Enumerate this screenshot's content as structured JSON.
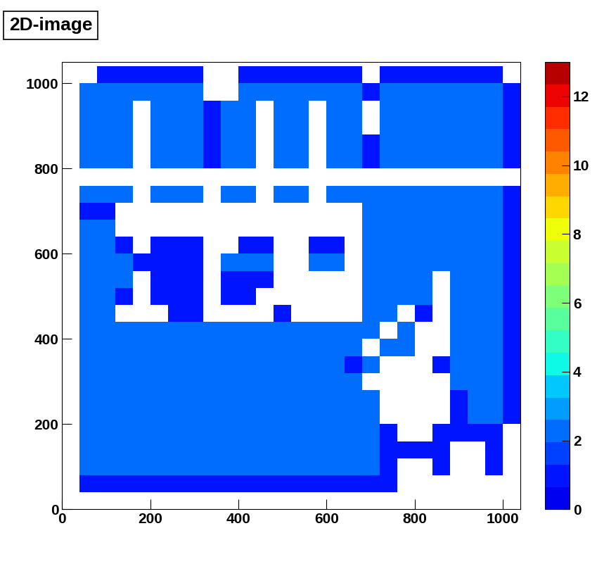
{
  "chart_data": {
    "type": "heatmap",
    "title": "2D-image",
    "x_edges": [
      0,
      40,
      80,
      120,
      160,
      200,
      240,
      280,
      320,
      360,
      400,
      440,
      480,
      520,
      560,
      600,
      640,
      680,
      720,
      760,
      800,
      840,
      880,
      920,
      960,
      1000,
      1040
    ],
    "y_edges": [
      0,
      40,
      80,
      120,
      160,
      200,
      240,
      280,
      320,
      360,
      400,
      440,
      480,
      520,
      560,
      600,
      640,
      680,
      720,
      760,
      800,
      840,
      880,
      920,
      960,
      1000,
      1040
    ],
    "cells": [
      [
        null,
        null,
        null,
        null,
        null,
        null,
        null,
        null,
        null,
        null,
        null,
        null,
        null,
        null,
        null,
        null,
        null,
        null,
        null,
        null,
        null,
        null,
        null,
        null,
        null,
        null
      ],
      [
        null,
        1,
        1,
        1,
        1,
        1,
        1,
        1,
        1,
        1,
        1,
        1,
        1,
        1,
        1,
        1,
        1,
        1,
        1,
        null,
        null,
        null,
        null,
        null,
        null,
        null
      ],
      [
        null,
        2,
        2,
        2,
        2,
        2,
        2,
        2,
        2,
        2,
        2,
        2,
        2,
        2,
        2,
        2,
        2,
        2,
        1,
        null,
        null,
        1,
        null,
        null,
        1,
        null
      ],
      [
        null,
        2,
        2,
        2,
        2,
        2,
        2,
        2,
        2,
        2,
        2,
        2,
        2,
        2,
        2,
        2,
        2,
        2,
        1,
        1,
        1,
        1,
        null,
        null,
        1,
        null
      ],
      [
        null,
        2,
        2,
        2,
        2,
        2,
        2,
        2,
        2,
        2,
        2,
        2,
        2,
        2,
        2,
        2,
        2,
        2,
        1,
        null,
        null,
        1,
        1,
        1,
        1,
        null
      ],
      [
        null,
        2,
        2,
        2,
        2,
        2,
        2,
        2,
        2,
        2,
        2,
        2,
        2,
        2,
        2,
        2,
        2,
        2,
        null,
        null,
        null,
        null,
        1,
        2,
        2,
        1
      ],
      [
        null,
        2,
        2,
        2,
        2,
        2,
        2,
        2,
        2,
        2,
        2,
        2,
        2,
        2,
        2,
        2,
        2,
        2,
        null,
        null,
        null,
        null,
        1,
        2,
        2,
        1
      ],
      [
        null,
        2,
        2,
        2,
        2,
        2,
        2,
        2,
        2,
        2,
        2,
        2,
        2,
        2,
        2,
        2,
        2,
        null,
        null,
        null,
        null,
        null,
        2,
        2,
        2,
        1
      ],
      [
        null,
        2,
        2,
        2,
        2,
        2,
        2,
        2,
        2,
        2,
        2,
        2,
        2,
        2,
        2,
        2,
        1,
        2,
        null,
        null,
        null,
        1,
        2,
        2,
        2,
        1
      ],
      [
        null,
        2,
        2,
        2,
        2,
        2,
        2,
        2,
        2,
        2,
        2,
        2,
        2,
        2,
        2,
        2,
        2,
        null,
        2,
        2,
        null,
        null,
        2,
        2,
        2,
        1
      ],
      [
        null,
        2,
        2,
        2,
        2,
        2,
        2,
        2,
        2,
        2,
        2,
        2,
        2,
        2,
        2,
        2,
        2,
        2,
        null,
        2,
        null,
        null,
        2,
        2,
        2,
        1
      ],
      [
        null,
        2,
        2,
        null,
        null,
        null,
        1,
        1,
        null,
        null,
        null,
        null,
        1,
        null,
        null,
        null,
        null,
        2,
        2,
        null,
        1,
        null,
        2,
        2,
        2,
        1
      ],
      [
        null,
        2,
        2,
        1,
        null,
        1,
        1,
        1,
        null,
        1,
        1,
        null,
        null,
        null,
        null,
        null,
        null,
        2,
        2,
        2,
        2,
        null,
        2,
        2,
        2,
        1
      ],
      [
        null,
        2,
        2,
        2,
        null,
        1,
        1,
        1,
        null,
        1,
        1,
        1,
        null,
        null,
        null,
        null,
        null,
        2,
        2,
        2,
        2,
        null,
        2,
        2,
        2,
        1
      ],
      [
        null,
        2,
        2,
        2,
        1,
        1,
        1,
        1,
        null,
        2,
        2,
        2,
        null,
        null,
        2,
        2,
        null,
        2,
        2,
        2,
        2,
        2,
        2,
        2,
        2,
        1
      ],
      [
        null,
        2,
        2,
        1,
        null,
        1,
        1,
        1,
        null,
        null,
        1,
        1,
        null,
        null,
        1,
        1,
        null,
        2,
        2,
        2,
        2,
        2,
        2,
        2,
        2,
        1
      ],
      [
        null,
        2,
        2,
        null,
        null,
        null,
        null,
        null,
        null,
        null,
        null,
        null,
        null,
        null,
        null,
        null,
        null,
        2,
        2,
        2,
        2,
        2,
        2,
        2,
        2,
        1
      ],
      [
        null,
        1,
        1,
        null,
        null,
        null,
        null,
        null,
        null,
        null,
        null,
        null,
        null,
        null,
        null,
        null,
        null,
        2,
        2,
        2,
        2,
        2,
        2,
        2,
        2,
        1
      ],
      [
        null,
        2,
        2,
        2,
        null,
        2,
        2,
        2,
        null,
        2,
        2,
        null,
        2,
        2,
        null,
        2,
        2,
        2,
        2,
        2,
        2,
        2,
        2,
        2,
        2,
        1
      ],
      [
        null,
        null,
        null,
        null,
        null,
        null,
        null,
        null,
        null,
        null,
        null,
        null,
        null,
        null,
        null,
        null,
        null,
        null,
        null,
        null,
        null,
        null,
        null,
        null,
        null,
        null
      ],
      [
        null,
        2,
        2,
        2,
        null,
        2,
        2,
        2,
        1,
        2,
        2,
        null,
        2,
        2,
        null,
        2,
        2,
        1,
        2,
        2,
        2,
        2,
        2,
        2,
        2,
        1
      ],
      [
        null,
        2,
        2,
        2,
        null,
        2,
        2,
        2,
        1,
        2,
        2,
        null,
        2,
        2,
        null,
        2,
        2,
        1,
        2,
        2,
        2,
        2,
        2,
        2,
        2,
        1
      ],
      [
        null,
        2,
        2,
        2,
        null,
        2,
        2,
        2,
        1,
        2,
        2,
        null,
        2,
        2,
        null,
        2,
        2,
        null,
        2,
        2,
        2,
        2,
        2,
        2,
        2,
        1
      ],
      [
        null,
        2,
        2,
        2,
        null,
        2,
        2,
        2,
        1,
        2,
        2,
        null,
        2,
        2,
        null,
        2,
        2,
        null,
        2,
        2,
        2,
        2,
        2,
        2,
        2,
        1
      ],
      [
        null,
        2,
        2,
        2,
        2,
        2,
        2,
        2,
        null,
        null,
        2,
        2,
        2,
        2,
        2,
        2,
        2,
        1,
        2,
        2,
        2,
        2,
        2,
        2,
        2,
        1
      ],
      [
        null,
        null,
        1,
        1,
        1,
        1,
        1,
        1,
        null,
        null,
        1,
        1,
        1,
        1,
        1,
        1,
        1,
        null,
        1,
        1,
        1,
        1,
        1,
        1,
        1,
        null
      ]
    ],
    "xlim": [
      0,
      1040
    ],
    "ylim": [
      0,
      1050
    ],
    "xticks": [
      0,
      200,
      400,
      600,
      800,
      1000
    ],
    "yticks": [
      0,
      200,
      400,
      600,
      800,
      1000
    ],
    "colorbar": {
      "range": [
        0,
        13
      ],
      "ticks": [
        0,
        2,
        4,
        6,
        8,
        10,
        12
      ]
    },
    "grid": false
  }
}
